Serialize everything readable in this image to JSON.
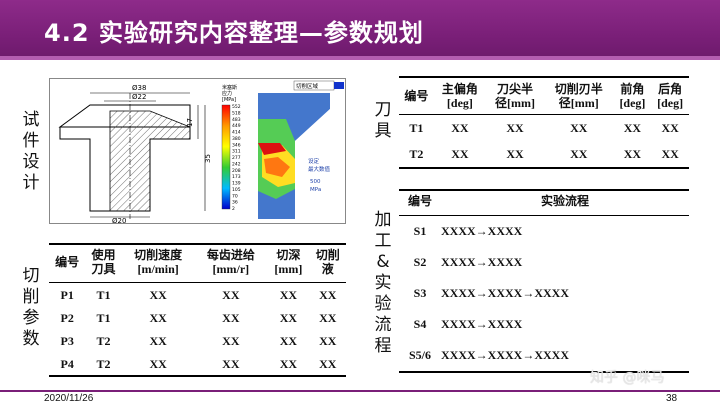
{
  "slide": {
    "title": "4.2 实验研究内容整理—参数规划",
    "date": "2020/11/26",
    "page_number": "38",
    "watermark": "知乎 @咪马"
  },
  "side_labels": {
    "specimen": [
      "试",
      "件",
      "设",
      "计"
    ],
    "cutting": [
      "切",
      "削",
      "参",
      "数"
    ],
    "tool": [
      "刀",
      "具"
    ],
    "process": [
      "加",
      "工",
      "&",
      "实",
      "验",
      "流",
      "程"
    ]
  },
  "figure": {
    "dims": [
      "Ø38",
      "Ø22",
      "Ø20",
      "17",
      "35"
    ],
    "legend_title": [
      "米塞斯",
      "应力",
      "[MPa]"
    ],
    "legend_values": [
      "552",
      "518",
      "483",
      "449",
      "414",
      "380",
      "346",
      "311",
      "277",
      "242",
      "208",
      "173",
      "139",
      "105",
      "70",
      "36",
      "2"
    ],
    "sim_label_box": "切削区域",
    "sim_notes": [
      "设定",
      "最大数值",
      "500",
      "MPa"
    ]
  },
  "cutting_table": {
    "headers": [
      [
        "编号"
      ],
      [
        "使用",
        "刀具"
      ],
      [
        "切削速度",
        "[m/min]"
      ],
      [
        "每齿进给",
        "[mm/r]"
      ],
      [
        "切深",
        "[mm]"
      ],
      [
        "切削",
        "液"
      ]
    ],
    "rows": [
      [
        "P1",
        "T1",
        "XX",
        "XX",
        "XX",
        "XX"
      ],
      [
        "P2",
        "T1",
        "XX",
        "XX",
        "XX",
        "XX"
      ],
      [
        "P3",
        "T2",
        "XX",
        "XX",
        "XX",
        "XX"
      ],
      [
        "P4",
        "T2",
        "XX",
        "XX",
        "XX",
        "XX"
      ]
    ]
  },
  "tool_table": {
    "headers": [
      [
        "编号"
      ],
      [
        "主偏角",
        "[deg]"
      ],
      [
        "刀尖半",
        "径[mm]"
      ],
      [
        "切削刃半",
        "径[mm]"
      ],
      [
        "前角",
        "[deg]"
      ],
      [
        "后角",
        "[deg]"
      ]
    ],
    "rows": [
      [
        "T1",
        "XX",
        "XX",
        "XX",
        "XX",
        "XX"
      ],
      [
        "T2",
        "XX",
        "XX",
        "XX",
        "XX",
        "XX"
      ]
    ]
  },
  "process_table": {
    "headers": [
      "编号",
      "实验流程"
    ],
    "rows": [
      [
        "S1",
        "XXXX→XXXX"
      ],
      [
        "S2",
        "XXXX→XXXX"
      ],
      [
        "S3",
        "XXXX→XXXX→XXXX"
      ],
      [
        "S4",
        "XXXX→XXXX"
      ],
      [
        "S5/6",
        "XXXX→XXXX→XXXX"
      ]
    ]
  }
}
